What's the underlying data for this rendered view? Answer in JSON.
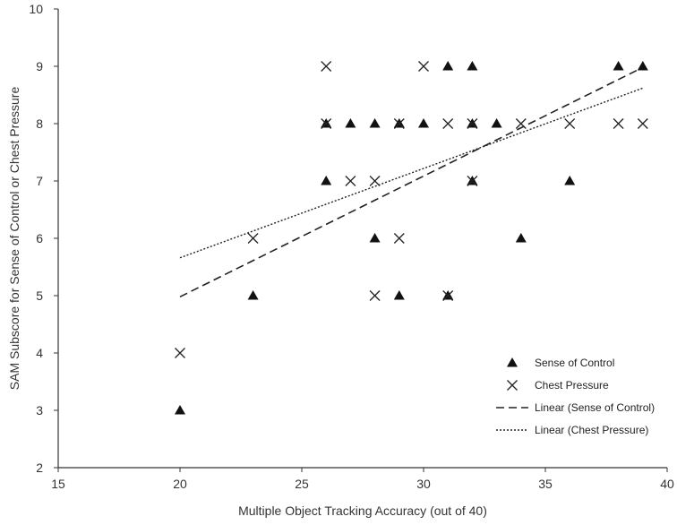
{
  "chart_data": {
    "type": "scatter",
    "title": "",
    "xlabel": "Multiple Object Tracking Accuracy (out of 40)",
    "ylabel": "SAM Subscore for Sense of Control or Chest Pressure",
    "xlim": [
      15,
      40
    ],
    "ylim": [
      2,
      10
    ],
    "xticks": [
      "15",
      "20",
      "25",
      "30",
      "35",
      "40"
    ],
    "yticks": [
      "2",
      "3",
      "4",
      "5",
      "6",
      "7",
      "8",
      "9",
      "10"
    ],
    "grid": false,
    "legend_position": "bottom-right",
    "series": [
      {
        "name": "Sense of Control",
        "marker": "triangle",
        "points": [
          [
            20,
            3
          ],
          [
            23,
            5
          ],
          [
            26,
            7
          ],
          [
            26,
            8
          ],
          [
            27,
            8
          ],
          [
            28,
            8
          ],
          [
            28,
            6
          ],
          [
            29,
            8
          ],
          [
            29,
            5
          ],
          [
            30,
            8
          ],
          [
            31,
            9
          ],
          [
            31,
            5
          ],
          [
            32,
            9
          ],
          [
            32,
            8
          ],
          [
            32,
            7
          ],
          [
            33,
            8
          ],
          [
            34,
            6
          ],
          [
            36,
            7
          ],
          [
            38,
            9
          ],
          [
            39,
            9
          ]
        ]
      },
      {
        "name": "Chest Pressure",
        "marker": "x",
        "points": [
          [
            20,
            4
          ],
          [
            23,
            6
          ],
          [
            26,
            9
          ],
          [
            26,
            8
          ],
          [
            27,
            7
          ],
          [
            28,
            7
          ],
          [
            28,
            5
          ],
          [
            29,
            8
          ],
          [
            29,
            6
          ],
          [
            30,
            9
          ],
          [
            31,
            8
          ],
          [
            31,
            5
          ],
          [
            32,
            8
          ],
          [
            32,
            7
          ],
          [
            34,
            8
          ],
          [
            36,
            8
          ],
          [
            38,
            8
          ],
          [
            39,
            8
          ]
        ]
      },
      {
        "name": "Linear (Sense of Control)",
        "style": "dashed",
        "x": [
          20,
          39
        ],
        "y": [
          4.98,
          8.98
        ]
      },
      {
        "name": "Linear (Chest Pressure)",
        "style": "dotted",
        "x": [
          20,
          39
        ],
        "y": [
          5.66,
          8.62
        ]
      }
    ]
  }
}
